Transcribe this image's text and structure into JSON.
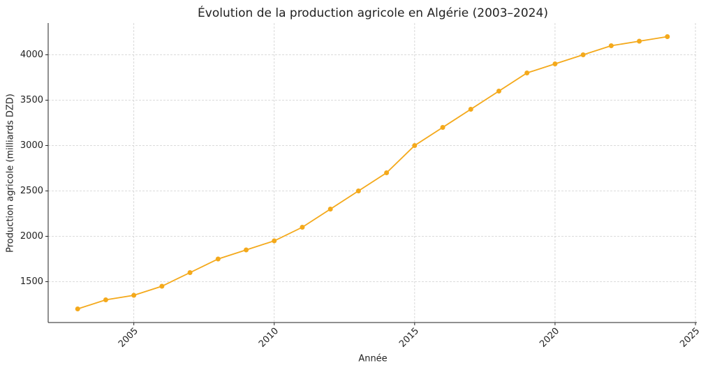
{
  "chart_data": {
    "type": "line",
    "title": "Évolution de la production agricole en Algérie (2003–2024)",
    "xlabel": "Année",
    "ylabel": "Production agricole (milliards DZD)",
    "x": [
      2003,
      2004,
      2005,
      2006,
      2007,
      2008,
      2009,
      2010,
      2011,
      2012,
      2013,
      2014,
      2015,
      2016,
      2017,
      2018,
      2019,
      2020,
      2021,
      2022,
      2023,
      2024
    ],
    "series": [
      {
        "name": "Production agricole",
        "color": "#f4a91b",
        "values": [
          1200,
          1300,
          1350,
          1450,
          1600,
          1750,
          1850,
          1950,
          2100,
          2300,
          2500,
          2700,
          3000,
          3200,
          3400,
          3600,
          3800,
          3900,
          4000,
          4100,
          4150,
          4200
        ]
      }
    ],
    "xlim": [
      2001.95,
      2025.05
    ],
    "xticks": [
      2005,
      2010,
      2015,
      2020,
      2025
    ],
    "ylim": [
      1050,
      4350
    ],
    "yticks": [
      1500,
      2000,
      2500,
      3000,
      3500,
      4000
    ],
    "grid": true
  }
}
